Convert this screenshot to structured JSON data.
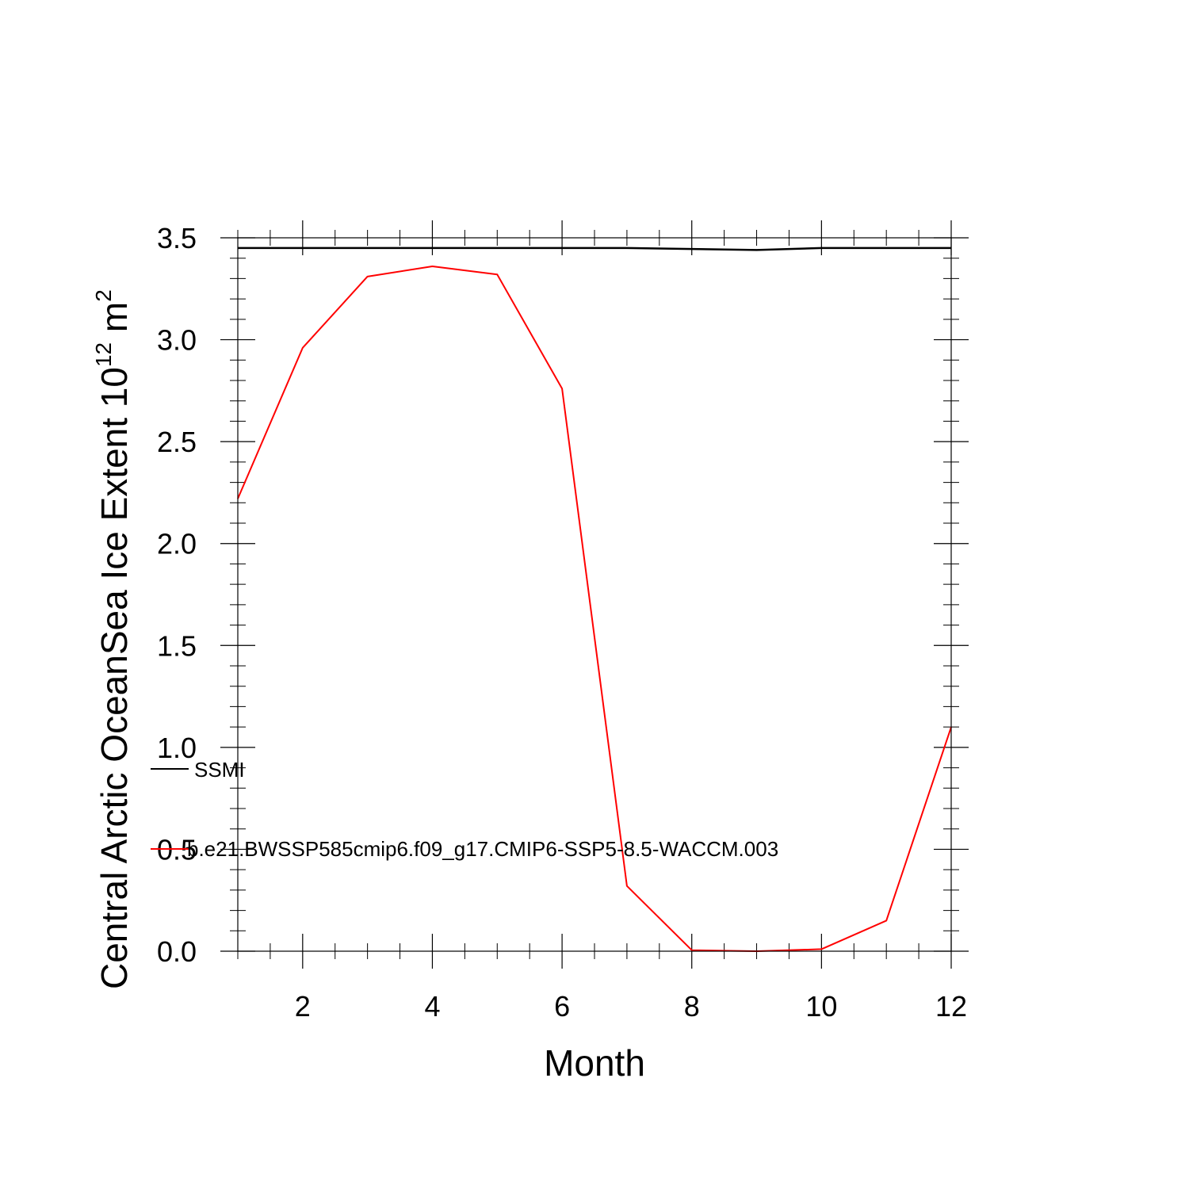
{
  "chart_data": {
    "type": "line",
    "xlabel": "Month",
    "ylabel": {
      "main": "Central Arctic OceanSea Ice Extent 10",
      "exp": "12",
      "unit": " m",
      "unit_exp": "2"
    },
    "xlim": [
      1,
      12
    ],
    "ylim": [
      0,
      3.5
    ],
    "xticks": [
      2,
      4,
      6,
      8,
      10,
      12
    ],
    "yticks": [
      0.0,
      0.5,
      1.0,
      1.5,
      2.0,
      2.5,
      3.0,
      3.5
    ],
    "ytick_labels": [
      "0.0",
      "0.5",
      "1.0",
      "1.5",
      "2.0",
      "2.5",
      "3.0",
      "3.5"
    ],
    "xtick_labels": [
      "2",
      "4",
      "6",
      "8",
      "10",
      "12"
    ],
    "grid": false,
    "legend_position": "lower-left",
    "x": [
      1,
      2,
      3,
      4,
      5,
      6,
      7,
      8,
      9,
      10,
      11,
      12
    ],
    "series": [
      {
        "name": "SSMI",
        "color": "#000000",
        "values": [
          3.45,
          3.45,
          3.45,
          3.45,
          3.45,
          3.45,
          3.45,
          3.445,
          3.44,
          3.45,
          3.45,
          3.45
        ]
      },
      {
        "name": "b.e21.BWSSP585cmip6.f09_g17.CMIP6-SSP5-8.5-WACCM.003",
        "color": "#ff0000",
        "values": [
          2.22,
          2.96,
          3.31,
          3.36,
          3.32,
          2.76,
          0.32,
          0.005,
          0.0,
          0.01,
          0.15,
          1.1
        ]
      }
    ]
  }
}
